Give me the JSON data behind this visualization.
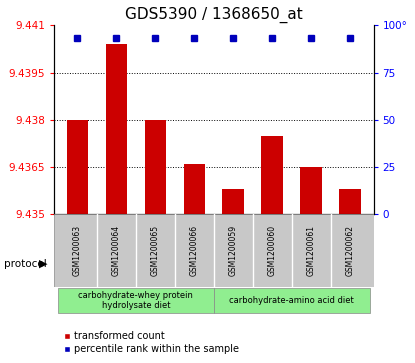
{
  "title": "GDS5390 / 1368650_at",
  "samples": [
    "GSM1200063",
    "GSM1200064",
    "GSM1200065",
    "GSM1200066",
    "GSM1200059",
    "GSM1200060",
    "GSM1200061",
    "GSM1200062"
  ],
  "bar_values": [
    9.438,
    9.4404,
    9.438,
    9.4366,
    9.4358,
    9.4375,
    9.4365,
    9.4358
  ],
  "percentile_values": [
    100,
    100,
    100,
    100,
    100,
    100,
    100,
    100
  ],
  "ylim_left": [
    9.435,
    9.441
  ],
  "ylim_right": [
    0,
    100
  ],
  "yticks_left": [
    9.435,
    9.4365,
    9.438,
    9.4395,
    9.441
  ],
  "yticks_right": [
    0,
    25,
    50,
    75,
    100
  ],
  "bar_color": "#cc0000",
  "dot_color": "#0000bb",
  "bg_color": "#c8c8c8",
  "group1_label": "carbohydrate-whey protein\nhydrolysate diet",
  "group2_label": "carbohydrate-amino acid diet",
  "group1_color": "#90ee90",
  "group2_color": "#90ee90",
  "group1_indices": [
    0,
    1,
    2,
    3
  ],
  "group2_indices": [
    4,
    5,
    6,
    7
  ],
  "legend_bar_label": "transformed count",
  "legend_dot_label": "percentile rank within the sample",
  "protocol_label": "protocol",
  "title_fontsize": 11,
  "tick_fontsize": 7.5,
  "sample_fontsize": 5.5,
  "group_fontsize": 6,
  "legend_fontsize": 7
}
